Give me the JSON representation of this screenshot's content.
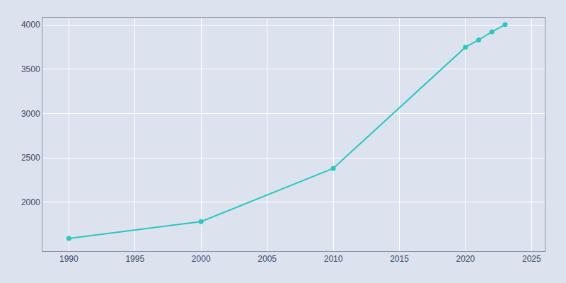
{
  "chart_data": {
    "type": "line",
    "x": [
      1990,
      2000,
      2010,
      2020,
      2021,
      2022,
      2023
    ],
    "values": [
      1594,
      1783,
      2383,
      3748,
      3829,
      3921,
      4002
    ],
    "color": "#2DC6C0",
    "marker": "circle",
    "xlim": [
      1988,
      2026
    ],
    "ylim": [
      1450,
      4080
    ],
    "xticks": [
      1990,
      1995,
      2000,
      2005,
      2010,
      2015,
      2020,
      2025
    ],
    "yticks": [
      2000,
      2500,
      3000,
      3500,
      4000
    ],
    "grid": true
  }
}
